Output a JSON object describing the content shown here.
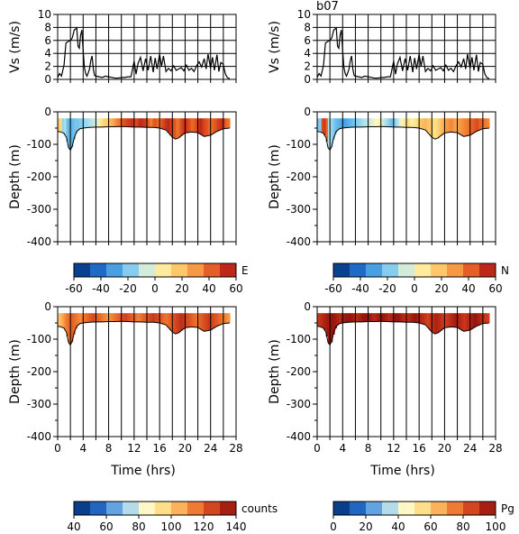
{
  "figure": {
    "station_label": "b07"
  },
  "colormaps": {
    "diverging": [
      "#08306b",
      "#0b4fb4",
      "#2f86d9",
      "#61b8ea",
      "#a8dff1",
      "#fff7c2",
      "#fedc7a",
      "#fdb35a",
      "#f07e2e",
      "#d6401c",
      "#a50f15"
    ],
    "sequential": [
      "#08306b",
      "#0b4fb4",
      "#4b93dc",
      "#a8d6f0",
      "#fff8c8",
      "#fedd85",
      "#fcaa52",
      "#ea6a28",
      "#c5341a",
      "#8e0d0b"
    ]
  },
  "colorbars": [
    {
      "label": "E",
      "ticks": [
        "-60",
        "-40",
        "-20",
        "0",
        "20",
        "40",
        "60"
      ],
      "cmap": "diverging",
      "range": [
        -60,
        60
      ]
    },
    {
      "label": "N",
      "ticks": [
        "-60",
        "-40",
        "-20",
        "0",
        "20",
        "40",
        "60"
      ],
      "cmap": "diverging",
      "range": [
        -60,
        60
      ]
    },
    {
      "label": "counts",
      "ticks": [
        "40",
        "60",
        "80",
        "100",
        "120",
        "140"
      ],
      "cmap": "sequential",
      "range": [
        40,
        140
      ]
    },
    {
      "label": "Pg",
      "ticks": [
        "0",
        "20",
        "40",
        "60",
        "80",
        "100"
      ],
      "cmap": "sequential",
      "range": [
        0,
        100
      ]
    }
  ],
  "chart_data": [
    {
      "type": "line",
      "panel": "speed-left",
      "ylabel": "Vs (m/s)",
      "xlim": [
        0,
        28
      ],
      "ylim": [
        0,
        10
      ],
      "yticks": [
        "0",
        "2",
        "4",
        "6",
        "8",
        "10"
      ],
      "xgrid": [
        0,
        2,
        4,
        6,
        8,
        10,
        12,
        14,
        16,
        18,
        20,
        22,
        24,
        26,
        28
      ],
      "x": [
        0,
        0.3,
        0.6,
        1.0,
        1.3,
        1.6,
        1.8,
        2.0,
        2.3,
        2.6,
        3.0,
        3.2,
        3.4,
        3.6,
        3.8,
        4.0,
        4.2,
        4.4,
        4.6,
        4.8,
        5.0,
        5.2,
        5.4,
        5.6,
        5.8,
        6.0,
        6.5,
        7.0,
        7.5,
        8.0,
        8.5,
        9.0,
        9.5,
        10.0,
        10.5,
        11.0,
        11.5,
        12.0,
        12.3,
        12.6,
        13.0,
        13.4,
        13.8,
        14.2,
        14.6,
        15.0,
        15.3,
        15.6,
        16.0,
        16.3,
        16.6,
        17.0,
        17.4,
        17.8,
        18.2,
        18.6,
        19.0,
        19.4,
        19.8,
        20.2,
        20.6,
        21.0,
        21.4,
        21.8,
        22.2,
        22.6,
        23.0,
        23.3,
        23.6,
        24.0,
        24.3,
        24.6,
        25.0,
        25.3,
        25.6,
        26.0,
        26.3,
        26.6,
        27.0
      ],
      "y": [
        0.3,
        0.9,
        0.5,
        2.2,
        5.6,
        5.8,
        5.9,
        6.0,
        6.4,
        7.6,
        7.9,
        5.1,
        4.8,
        6.8,
        7.6,
        4.4,
        1.8,
        0.9,
        0.5,
        1.0,
        1.6,
        2.9,
        3.6,
        1.6,
        0.6,
        0.5,
        0.4,
        0.3,
        0.5,
        0.4,
        0.3,
        0.2,
        0.2,
        0.3,
        0.3,
        0.4,
        0.4,
        2.8,
        0.8,
        2.4,
        3.4,
        1.3,
        3.2,
        1.4,
        3.6,
        1.1,
        3.3,
        1.6,
        3.9,
        2.0,
        3.6,
        1.2,
        1.7,
        1.3,
        2.1,
        1.4,
        1.6,
        1.8,
        1.3,
        2.2,
        1.4,
        1.7,
        1.2,
        2.1,
        2.7,
        1.9,
        3.2,
        1.6,
        3.9,
        1.7,
        3.4,
        1.4,
        3.8,
        1.2,
        2.6,
        2.3,
        0.9,
        0.3,
        0.1
      ]
    },
    {
      "type": "line",
      "panel": "speed-right",
      "ylabel": "Vs (m/s)",
      "xlim": [
        0,
        28
      ],
      "ylim": [
        0,
        10
      ],
      "yticks": [
        "0",
        "2",
        "4",
        "6",
        "8",
        "10"
      ],
      "xgrid": [
        0,
        2,
        4,
        6,
        8,
        10,
        12,
        14,
        16,
        18,
        20,
        22,
        24,
        26,
        28
      ],
      "x": [
        0,
        0.3,
        0.6,
        1.0,
        1.3,
        1.6,
        1.8,
        2.0,
        2.3,
        2.6,
        3.0,
        3.2,
        3.4,
        3.6,
        3.8,
        4.0,
        4.2,
        4.4,
        4.6,
        4.8,
        5.0,
        5.2,
        5.4,
        5.6,
        5.8,
        6.0,
        6.5,
        7.0,
        7.5,
        8.0,
        8.5,
        9.0,
        9.5,
        10.0,
        10.5,
        11.0,
        11.5,
        12.0,
        12.3,
        12.6,
        13.0,
        13.4,
        13.8,
        14.2,
        14.6,
        15.0,
        15.3,
        15.6,
        16.0,
        16.3,
        16.6,
        17.0,
        17.4,
        17.8,
        18.2,
        18.6,
        19.0,
        19.4,
        19.8,
        20.2,
        20.6,
        21.0,
        21.4,
        21.8,
        22.2,
        22.6,
        23.0,
        23.3,
        23.6,
        24.0,
        24.3,
        24.6,
        25.0,
        25.3,
        25.6,
        26.0,
        26.3,
        26.6,
        27.0
      ],
      "y": [
        0.3,
        0.9,
        0.5,
        2.2,
        5.6,
        5.8,
        5.9,
        6.0,
        6.4,
        7.6,
        7.9,
        5.1,
        4.8,
        6.8,
        7.6,
        4.4,
        1.8,
        0.9,
        0.5,
        1.0,
        1.6,
        2.9,
        3.6,
        1.6,
        0.6,
        0.5,
        0.4,
        0.3,
        0.5,
        0.4,
        0.3,
        0.2,
        0.2,
        0.3,
        0.3,
        0.4,
        0.4,
        2.8,
        0.8,
        2.4,
        3.4,
        1.3,
        3.2,
        1.4,
        3.6,
        1.1,
        3.3,
        1.6,
        3.9,
        2.0,
        3.6,
        1.2,
        1.7,
        1.3,
        2.1,
        1.4,
        1.6,
        1.8,
        1.3,
        2.2,
        1.4,
        1.7,
        1.2,
        2.1,
        2.7,
        1.9,
        3.2,
        1.6,
        3.9,
        1.7,
        3.4,
        1.4,
        3.8,
        1.2,
        2.6,
        2.3,
        0.9,
        0.3,
        0.1
      ]
    },
    {
      "type": "heatmap",
      "panel": "E",
      "ylabel": "Depth (m)",
      "xlim": [
        0,
        28
      ],
      "ylim": [
        -400,
        0
      ],
      "yticks": [
        "0",
        "-100",
        "-200",
        "-300",
        "-400"
      ],
      "xgrid": [
        0,
        2,
        4,
        6,
        8,
        10,
        12,
        14,
        16,
        18,
        20,
        22,
        24,
        26,
        28
      ],
      "cmap": "diverging",
      "value_range": [
        -60,
        60
      ],
      "bottom_x": [
        0,
        0.5,
        1.0,
        1.4,
        1.7,
        2.0,
        2.3,
        2.6,
        3.0,
        3.5,
        4.0,
        5,
        6,
        7,
        8,
        9,
        10,
        11,
        12,
        13,
        14,
        15,
        16,
        17,
        18,
        18.5,
        19,
        19.5,
        20,
        21,
        22,
        22.5,
        23,
        24,
        25,
        26,
        27
      ],
      "bottom_y": [
        -60,
        -62,
        -66,
        -80,
        -110,
        -118,
        -105,
        -80,
        -60,
        -52,
        -50,
        -48,
        -47,
        -47,
        -46,
        -46,
        -45,
        -46,
        -47,
        -47,
        -48,
        -48,
        -50,
        -56,
        -78,
        -84,
        -80,
        -72,
        -65,
        -62,
        -64,
        -70,
        -76,
        -72,
        -60,
        -52,
        -50
      ],
      "top_depth": -20,
      "column_values": [
        18,
        12,
        -15,
        -12,
        -22,
        -26,
        -24,
        -22,
        -20,
        -20,
        -18,
        -18,
        -16,
        -14,
        -12,
        -10,
        -8,
        -6,
        -4,
        5,
        10,
        14,
        16,
        18,
        22,
        26,
        30,
        34,
        38,
        40,
        44,
        46,
        48,
        50,
        52,
        48,
        46,
        50,
        54,
        52,
        50,
        48,
        40,
        36,
        42,
        44,
        40,
        38,
        45,
        48,
        52,
        54,
        50,
        46,
        44,
        38,
        40,
        46,
        50,
        52,
        48,
        44,
        40,
        42,
        46,
        50,
        54,
        50,
        46,
        44,
        40,
        38,
        42,
        44,
        48,
        50,
        52,
        46,
        40,
        38
      ]
    },
    {
      "type": "heatmap",
      "panel": "N",
      "ylabel": "Depth (m)",
      "xlim": [
        0,
        28
      ],
      "ylim": [
        -400,
        0
      ],
      "yticks": [
        "0",
        "-100",
        "-200",
        "-300",
        "-400"
      ],
      "xgrid": [
        0,
        2,
        4,
        6,
        8,
        10,
        12,
        14,
        16,
        18,
        20,
        22,
        24,
        26,
        28
      ],
      "cmap": "diverging",
      "value_range": [
        -60,
        60
      ],
      "bottom_x": [
        0,
        0.5,
        1.0,
        1.4,
        1.7,
        2.0,
        2.3,
        2.6,
        3.0,
        3.5,
        4.0,
        5,
        6,
        7,
        8,
        9,
        10,
        11,
        12,
        13,
        14,
        15,
        16,
        17,
        18,
        18.5,
        19,
        19.5,
        20,
        21,
        22,
        22.5,
        23,
        24,
        25,
        26,
        27
      ],
      "bottom_y": [
        -60,
        -62,
        -66,
        -80,
        -110,
        -118,
        -105,
        -80,
        -60,
        -52,
        -50,
        -48,
        -47,
        -47,
        -46,
        -46,
        -45,
        -46,
        -47,
        -47,
        -48,
        -48,
        -50,
        -56,
        -78,
        -84,
        -80,
        -72,
        -65,
        -62,
        -64,
        -70,
        -76,
        -72,
        -60,
        -52,
        -50
      ],
      "top_depth": -20,
      "column_values": [
        -20,
        -18,
        46,
        50,
        40,
        -10,
        -14,
        -18,
        -22,
        -24,
        -26,
        -28,
        -30,
        -28,
        -26,
        -24,
        -22,
        -20,
        -18,
        -16,
        -14,
        -12,
        -10,
        -8,
        -6,
        -4,
        -2,
        0,
        2,
        4,
        -6,
        -10,
        -14,
        -18,
        -22,
        -20,
        -16,
        -10,
        -4,
        2,
        6,
        8,
        10,
        6,
        4,
        8,
        12,
        16,
        20,
        22,
        24,
        20,
        18,
        14,
        10,
        12,
        16,
        20,
        24,
        28,
        30,
        32,
        34,
        30,
        28,
        26,
        30,
        32,
        34,
        36,
        38,
        40,
        42,
        44,
        46,
        42,
        40,
        38,
        36,
        34
      ]
    },
    {
      "type": "heatmap",
      "panel": "counts",
      "ylabel": "Depth (m)",
      "xlabel": "Time (hrs)",
      "xlim": [
        0,
        28
      ],
      "ylim": [
        -400,
        0
      ],
      "xticks": [
        "0",
        "4",
        "8",
        "12",
        "16",
        "20",
        "24",
        "28"
      ],
      "yticks": [
        "0",
        "-100",
        "-200",
        "-300",
        "-400"
      ],
      "xgrid": [
        0,
        2,
        4,
        6,
        8,
        10,
        12,
        14,
        16,
        18,
        20,
        22,
        24,
        26,
        28
      ],
      "cmap": "sequential",
      "value_range": [
        40,
        140
      ],
      "bottom_x": [
        0,
        0.5,
        1.0,
        1.4,
        1.7,
        2.0,
        2.3,
        2.6,
        3.0,
        3.5,
        4.0,
        5,
        6,
        7,
        8,
        9,
        10,
        11,
        12,
        13,
        14,
        15,
        16,
        17,
        18,
        18.5,
        19,
        19.5,
        20,
        21,
        22,
        22.5,
        23,
        24,
        25,
        26,
        27
      ],
      "bottom_y": [
        -60,
        -62,
        -66,
        -80,
        -110,
        -118,
        -105,
        -80,
        -60,
        -52,
        -50,
        -48,
        -47,
        -47,
        -46,
        -46,
        -45,
        -46,
        -47,
        -47,
        -48,
        -48,
        -50,
        -56,
        -78,
        -84,
        -80,
        -72,
        -65,
        -62,
        -64,
        -70,
        -76,
        -72,
        -60,
        -52,
        -50
      ],
      "top_depth": -20,
      "column_values": [
        100,
        104,
        108,
        112,
        116,
        118,
        120,
        118,
        116,
        114,
        112,
        114,
        116,
        118,
        120,
        122,
        124,
        122,
        120,
        118,
        116,
        114,
        112,
        110,
        112,
        114,
        116,
        118,
        120,
        122,
        124,
        126,
        124,
        122,
        120,
        118,
        116,
        114,
        116,
        118,
        120,
        122,
        124,
        126,
        128,
        126,
        124,
        122,
        120,
        118,
        116,
        118,
        120,
        122,
        124,
        126,
        128,
        130,
        128,
        126,
        124,
        122,
        120,
        118,
        116,
        118,
        120,
        122,
        124,
        126,
        128,
        126,
        124,
        122,
        120,
        118,
        116,
        114,
        112,
        110
      ]
    },
    {
      "type": "heatmap",
      "panel": "Pg",
      "ylabel": "Depth (m)",
      "xlabel": "Time (hrs)",
      "xlim": [
        0,
        28
      ],
      "ylim": [
        -400,
        0
      ],
      "xticks": [
        "0",
        "4",
        "8",
        "12",
        "16",
        "20",
        "24",
        "28"
      ],
      "yticks": [
        "0",
        "-100",
        "-200",
        "-300",
        "-400"
      ],
      "xgrid": [
        0,
        2,
        4,
        6,
        8,
        10,
        12,
        14,
        16,
        18,
        20,
        22,
        24,
        26,
        28
      ],
      "cmap": "sequential",
      "value_range": [
        0,
        100
      ],
      "bottom_x": [
        0,
        0.5,
        1.0,
        1.4,
        1.7,
        2.0,
        2.3,
        2.6,
        3.0,
        3.5,
        4.0,
        5,
        6,
        7,
        8,
        9,
        10,
        11,
        12,
        13,
        14,
        15,
        16,
        17,
        18,
        18.5,
        19,
        19.5,
        20,
        21,
        22,
        22.5,
        23,
        24,
        25,
        26,
        27
      ],
      "bottom_y": [
        -60,
        -62,
        -66,
        -80,
        -110,
        -118,
        -105,
        -80,
        -60,
        -52,
        -50,
        -48,
        -47,
        -47,
        -46,
        -46,
        -45,
        -46,
        -47,
        -47,
        -48,
        -48,
        -50,
        -56,
        -78,
        -84,
        -80,
        -72,
        -65,
        -62,
        -64,
        -70,
        -76,
        -72,
        -60,
        -52,
        -50
      ],
      "top_depth": -20,
      "column_values": [
        88,
        90,
        92,
        94,
        96,
        96,
        98,
        98,
        96,
        94,
        92,
        94,
        96,
        98,
        98,
        98,
        96,
        94,
        92,
        94,
        96,
        98,
        98,
        98,
        96,
        94,
        92,
        94,
        96,
        98,
        98,
        96,
        94,
        92,
        94,
        96,
        98,
        98,
        96,
        94,
        92,
        90,
        92,
        94,
        96,
        98,
        96,
        94,
        92,
        90,
        88,
        86,
        88,
        90,
        92,
        94,
        92,
        90,
        88,
        86,
        88,
        90,
        92,
        94,
        96,
        94,
        92,
        90,
        88,
        90,
        92,
        94,
        96,
        98,
        96,
        94,
        92,
        90,
        88,
        86
      ]
    }
  ]
}
